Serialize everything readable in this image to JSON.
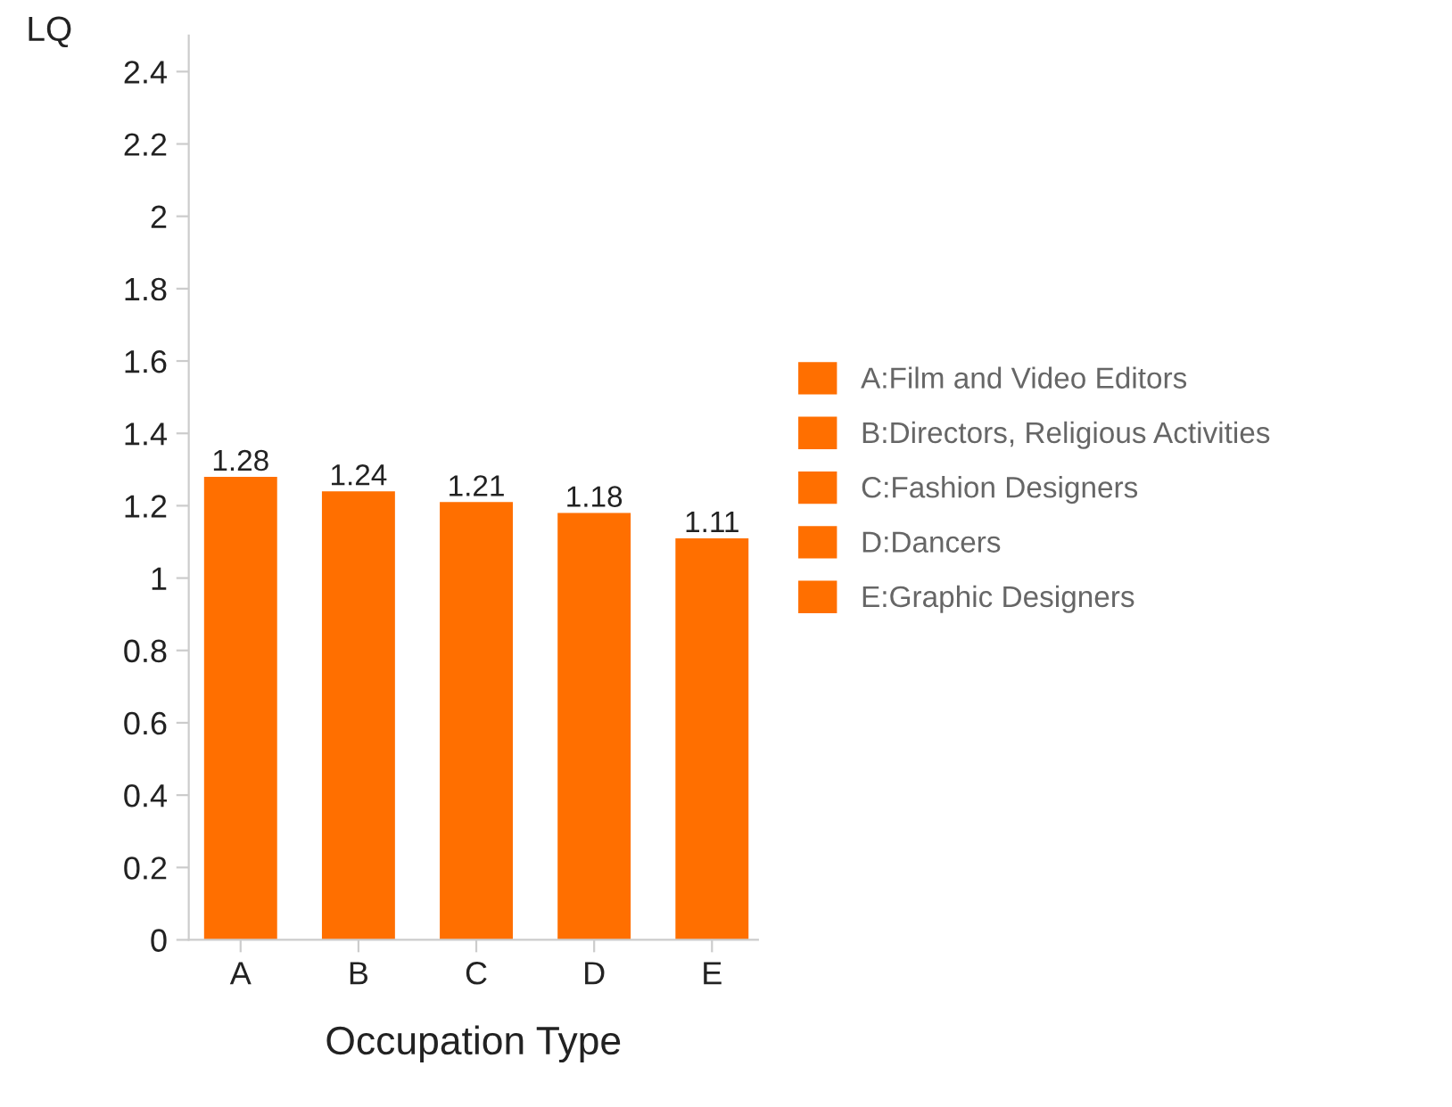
{
  "chart_data": {
    "type": "bar",
    "xlabel": "Occupation Type",
    "ylabel": "LQ",
    "categories": [
      "A",
      "B",
      "C",
      "D",
      "E"
    ],
    "series": [
      {
        "name": "A:Film and Video Editors",
        "color": "#ff6f00",
        "values": [
          1.28,
          null,
          null,
          null,
          null
        ]
      },
      {
        "name": "B:Directors, Religious Activities",
        "color": "#ff6f00",
        "values": [
          null,
          1.24,
          null,
          null,
          null
        ]
      },
      {
        "name": "C:Fashion Designers",
        "color": "#ff6f00",
        "values": [
          null,
          null,
          1.21,
          null,
          null
        ]
      },
      {
        "name": "D:Dancers",
        "color": "#ff6f00",
        "values": [
          null,
          null,
          null,
          1.18,
          null
        ]
      },
      {
        "name": "E:Graphic Designers",
        "color": "#ff6f00",
        "values": [
          null,
          null,
          null,
          null,
          1.11
        ]
      }
    ],
    "stacked": true,
    "data_labels": true,
    "legend": "right",
    "ylim": [
      0,
      2.5
    ],
    "yticks": [
      0,
      0.2,
      0.4,
      0.6,
      0.8,
      1,
      1.2,
      1.4,
      1.6,
      1.8,
      2,
      2.2,
      2.4
    ]
  }
}
